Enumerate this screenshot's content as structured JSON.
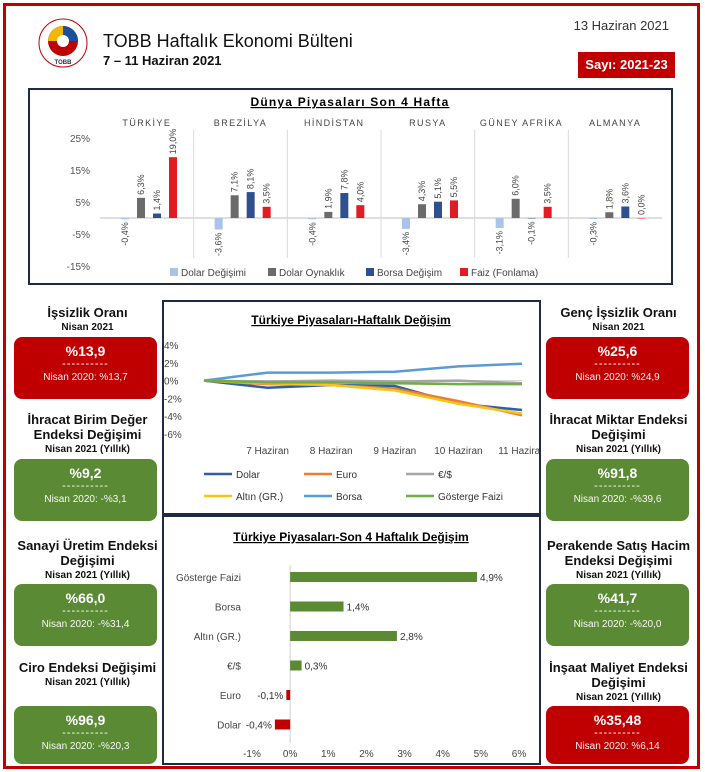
{
  "header": {
    "title": "TOBB Haftalık Ekonomi Bülteni",
    "subtitle": "7 – 11 Haziran 2021",
    "date": "13 Haziran 2021",
    "issue": "Sayı: 2021-23",
    "logo_text": "TOBB"
  },
  "colors": {
    "red": "#c00000",
    "green": "#5b8a35",
    "navy": "#1f2a44"
  },
  "chart_data": [
    {
      "type": "bar",
      "title": "Dünya Piyasaları Son 4 Hafta",
      "groups": [
        "TÜRKİYE",
        "BREZİLYA",
        "HİNDİSTAN",
        "RUSYA",
        "GÜNEY AFRİKA",
        "ALMANYA"
      ],
      "series": [
        {
          "name": "Dolar Değişimi",
          "color": "#a9c4e8",
          "values": [
            -0.4,
            -3.6,
            -0.4,
            -3.4,
            -3.1,
            -0.3
          ],
          "labels": [
            "-0,4%",
            "-3,6%",
            "-0,4%",
            "-3,4%",
            "-3,1%",
            "-0,3%"
          ]
        },
        {
          "name": "Dolar Oynaklık",
          "color": "#6b6b6b",
          "values": [
            6.3,
            7.1,
            1.9,
            4.3,
            6.0,
            1.8
          ],
          "labels": [
            "6,3%",
            "7,1%",
            "1,9%",
            "4,3%",
            "6,0%",
            "1,8%"
          ]
        },
        {
          "name": "Borsa Değişim",
          "color": "#2f4f8f",
          "values": [
            1.4,
            8.1,
            7.8,
            5.1,
            -0.1,
            3.6
          ],
          "labels": [
            "1,4%",
            "8,1%",
            "7,8%",
            "5,1%",
            "-0,1%",
            "3,6%"
          ]
        },
        {
          "name": "Faiz (Fonlama)",
          "color": "#e31b23",
          "values": [
            19.0,
            3.5,
            4.0,
            5.5,
            3.5,
            0.0
          ],
          "labels": [
            "19,0%",
            "3,5%",
            "4,0%",
            "5,5%",
            "3,5%",
            "0,0%"
          ]
        }
      ],
      "ylim": [
        -15,
        25
      ],
      "yticks": [
        -15,
        -5,
        5,
        15,
        25
      ],
      "ytick_labels": [
        "-15%",
        "-5%",
        "5%",
        "15%",
        "25%"
      ],
      "legend": "bottom"
    },
    {
      "type": "line",
      "title": "Türkiye Piyasaları-Haftalık Değişim",
      "x": [
        "",
        "7 Haziran",
        "8 Haziran",
        "9 Haziran",
        "10 Haziran",
        "11 Haziran"
      ],
      "series": [
        {
          "name": "Dolar",
          "color": "#2e5ea8",
          "values": [
            0,
            -0.8,
            -0.5,
            -0.6,
            -2.6,
            -3.3
          ]
        },
        {
          "name": "Euro",
          "color": "#ed7d31",
          "values": [
            0,
            -0.4,
            -0.5,
            -0.9,
            -2.3,
            -3.9
          ]
        },
        {
          "name": "€/$",
          "color": "#a5a5a5",
          "values": [
            0,
            -0.1,
            0.0,
            -0.1,
            0.0,
            -0.3
          ]
        },
        {
          "name": "Altın (GR.)",
          "color": "#f5c518",
          "values": [
            0,
            -0.3,
            -0.5,
            -1.1,
            -2.6,
            -3.7
          ]
        },
        {
          "name": "Borsa",
          "color": "#5b9bd5",
          "values": [
            0,
            0.9,
            0.9,
            1.0,
            1.6,
            1.9
          ]
        },
        {
          "name": "Gösterge Faizi",
          "color": "#70ad47",
          "values": [
            0,
            -0.2,
            -0.2,
            -0.3,
            -0.4,
            -0.4
          ]
        }
      ],
      "ylim": [
        -6,
        4
      ],
      "yticks": [
        -6,
        -4,
        -2,
        0,
        2,
        4
      ],
      "ytick_labels": [
        "-6%",
        "-4%",
        "-2%",
        "0%",
        "2%",
        "4%"
      ],
      "legend": "bottom"
    },
    {
      "type": "bar",
      "orientation": "horizontal",
      "title": "Türkiye Piyasaları-Son 4 Haftalık Değişim",
      "categories": [
        "Gösterge Faizi",
        "Borsa",
        "Altın (GR.)",
        "€/$",
        "Euro",
        "Dolar"
      ],
      "values": [
        4.9,
        1.4,
        2.8,
        0.3,
        -0.1,
        -0.4
      ],
      "labels": [
        "4,9%",
        "1,4%",
        "2,8%",
        "0,3%",
        "-0,1%",
        "-0,4%"
      ],
      "colors": [
        "#5b8a35",
        "#5b8a35",
        "#5b8a35",
        "#5b8a35",
        "#c00000",
        "#c00000"
      ],
      "xlim": [
        -1,
        6
      ],
      "xticks": [
        -1,
        0,
        1,
        2,
        3,
        4,
        5,
        6
      ],
      "xtick_labels": [
        "-1%",
        "0%",
        "1%",
        "2%",
        "3%",
        "4%",
        "5%",
        "6%"
      ]
    }
  ],
  "left_cards": [
    {
      "title": "İşsizlik Oranı",
      "period": "Nisan 2021",
      "value": "%13,9",
      "dash": "----------",
      "prev": "Nisan 2020: %13,7",
      "color": "red"
    },
    {
      "title": "İhracat Birim Değer Endeksi Değişimi",
      "period": "Nisan 2021 (Yıllık)",
      "value": "%9,2",
      "dash": "----------",
      "prev": "Nisan 2020: -%3,1",
      "color": "green"
    },
    {
      "title": "Sanayi Üretim Endeksi Değişimi",
      "period": "Nisan 2021 (Yıllık)",
      "value": "%66,0",
      "dash": "----------",
      "prev": "Nisan 2020: -%31,4",
      "color": "green"
    },
    {
      "title": "Ciro Endeksi Değişimi",
      "period": "Nisan 2021 (Yıllık)",
      "value": "%96,9",
      "dash": "----------",
      "prev": "Nisan 2020: -%20,3",
      "color": "green"
    }
  ],
  "right_cards": [
    {
      "title": "Genç İşsizlik Oranı",
      "period": "Nisan 2021",
      "value": "%25,6",
      "dash": "----------",
      "prev": "Nisan 2020: %24,9",
      "color": "red"
    },
    {
      "title": "İhracat Miktar Endeksi Değişimi",
      "period": "Nisan 2021 (Yıllık)",
      "value": "%91,8",
      "dash": "----------",
      "prev": "Nisan 2020: -%39,6",
      "color": "green"
    },
    {
      "title": "Perakende Satış Hacim Endeksi Değişimi",
      "period": "Nisan 2021 (Yıllık)",
      "value": "%41,7",
      "dash": "----------",
      "prev": "Nisan 2020: -%20,0",
      "color": "green"
    },
    {
      "title": "İnşaat Maliyet Endeksi Değişimi",
      "period": "Nisan 2021 (Yıllık)",
      "value": "%35,48",
      "dash": "----------",
      "prev": "Nisan 2020: %6,14",
      "color": "red"
    }
  ]
}
